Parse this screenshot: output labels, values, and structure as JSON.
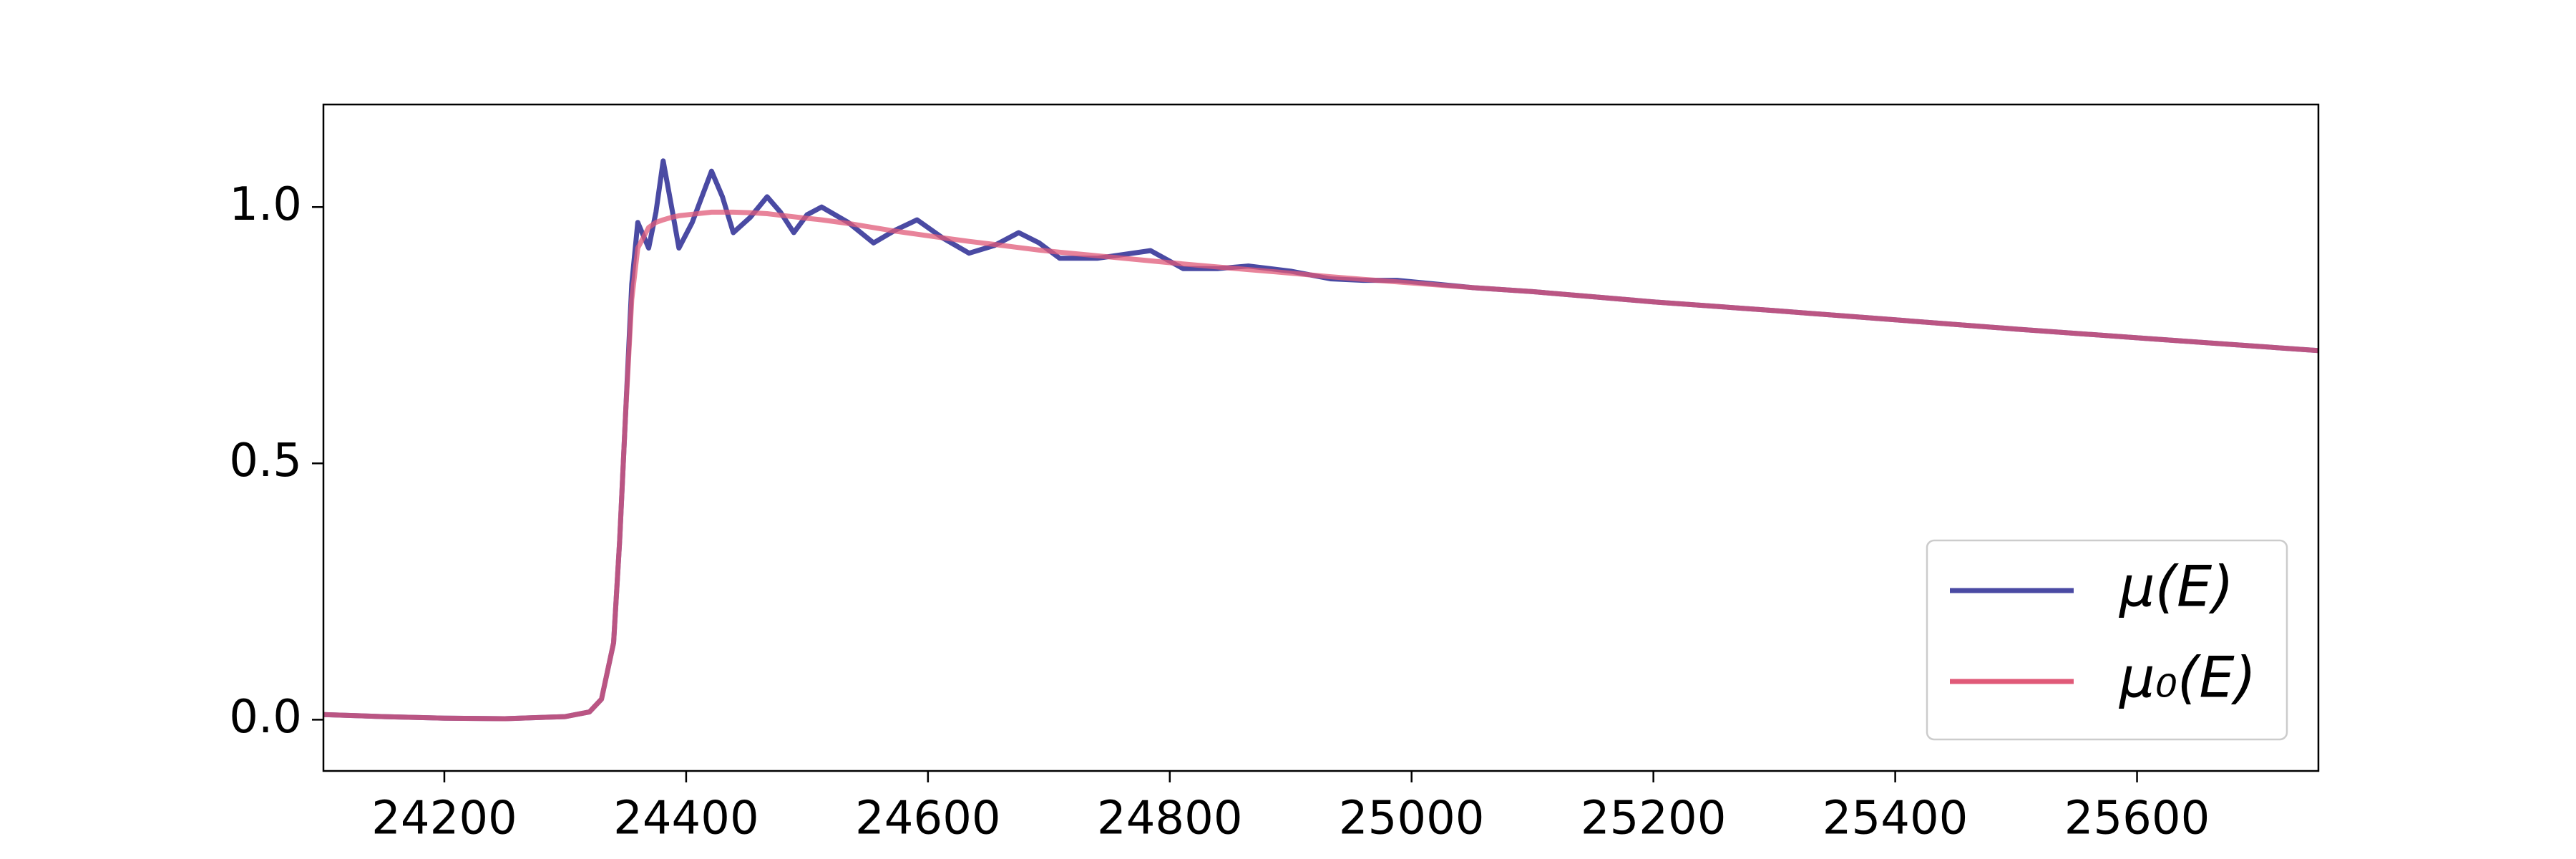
{
  "chart_data": {
    "type": "line",
    "x": [
      24100,
      24150,
      24200,
      24250,
      24300,
      24320,
      24330,
      24340,
      24345,
      24350,
      24355,
      24360,
      24369,
      24375,
      24381,
      24388,
      24394,
      24405,
      24421,
      24430,
      24439,
      24453,
      24467,
      24478,
      24489,
      24500,
      24512,
      24534,
      24555,
      24573,
      24591,
      24612,
      24634,
      24655,
      24675,
      24692,
      24709,
      24740,
      24784,
      24811,
      24840,
      24865,
      24900,
      24933,
      24960,
      24988,
      25050,
      25100,
      25200,
      25300,
      25400,
      25500,
      25600,
      25750
    ],
    "series": [
      {
        "name": "μ(E)",
        "color": "#4a4aa3",
        "values": [
          0.01,
          0.006,
          0.003,
          0.002,
          0.006,
          0.015,
          0.04,
          0.15,
          0.35,
          0.6,
          0.85,
          0.97,
          0.92,
          0.99,
          1.09,
          1.0,
          0.92,
          0.97,
          1.07,
          1.02,
          0.95,
          0.98,
          1.02,
          0.99,
          0.95,
          0.985,
          1.0,
          0.97,
          0.93,
          0.955,
          0.975,
          0.94,
          0.91,
          0.925,
          0.95,
          0.93,
          0.9,
          0.9,
          0.915,
          0.88,
          0.88,
          0.885,
          0.875,
          0.86,
          0.857,
          0.857,
          0.843,
          0.835,
          0.815,
          0.798,
          0.78,
          0.762,
          0.745,
          0.72
        ]
      },
      {
        "name": "μ₀(E)",
        "color": "#e05a78",
        "values": [
          0.01,
          0.006,
          0.003,
          0.002,
          0.006,
          0.015,
          0.04,
          0.15,
          0.35,
          0.6,
          0.82,
          0.92,
          0.96,
          0.97,
          0.975,
          0.98,
          0.983,
          0.986,
          0.99,
          0.99,
          0.99,
          0.989,
          0.987,
          0.984,
          0.981,
          0.978,
          0.975,
          0.968,
          0.96,
          0.953,
          0.947,
          0.94,
          0.933,
          0.927,
          0.921,
          0.916,
          0.912,
          0.905,
          0.895,
          0.889,
          0.883,
          0.878,
          0.871,
          0.864,
          0.859,
          0.854,
          0.843,
          0.835,
          0.815,
          0.798,
          0.78,
          0.762,
          0.745,
          0.72
        ]
      }
    ],
    "xlim": [
      24100,
      25750
    ],
    "xticks": [
      24200,
      24400,
      24600,
      24800,
      25000,
      25200,
      25400,
      25600
    ],
    "ylim": [
      -0.1,
      1.2
    ],
    "yticks": [
      {
        "value": 0,
        "label": "0.0"
      },
      {
        "value": 0.5,
        "label": "0.5"
      },
      {
        "value": 1,
        "label": "1.0"
      }
    ],
    "legend": "lower right"
  }
}
